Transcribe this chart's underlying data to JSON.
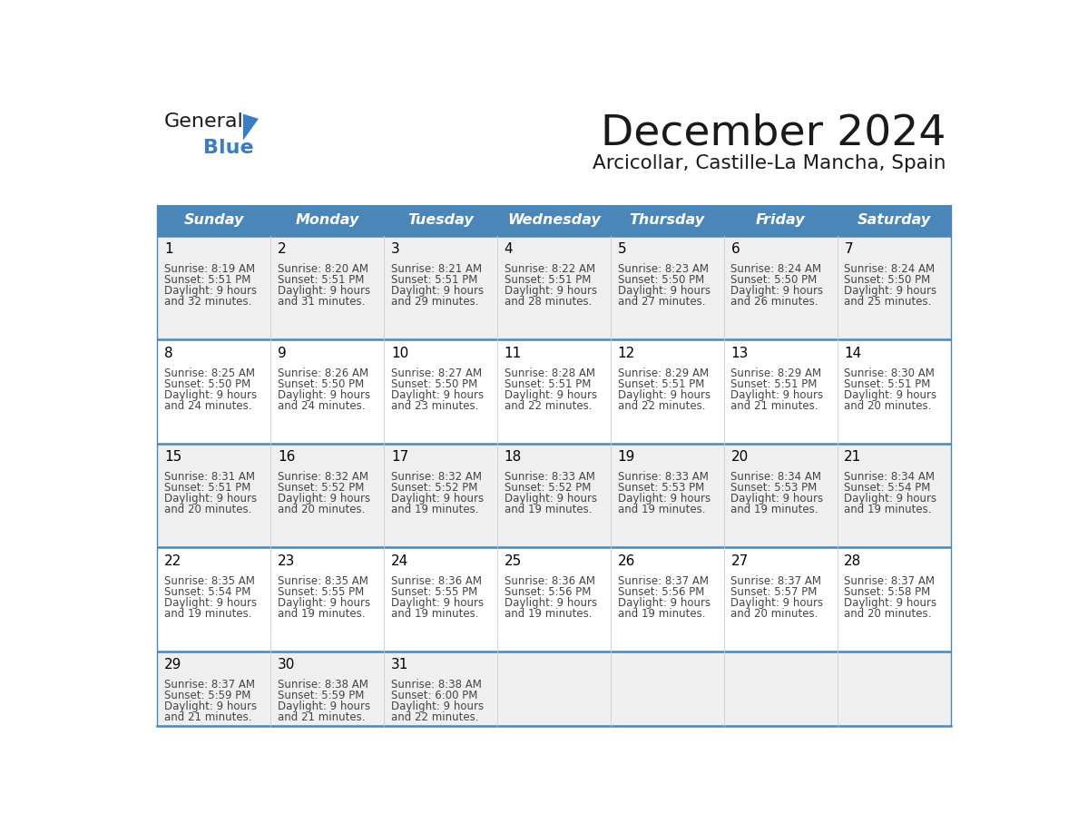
{
  "title": "December 2024",
  "subtitle": "Arcicollar, Castille-La Mancha, Spain",
  "header_color": "#4a86b8",
  "header_text_color": "#ffffff",
  "days_of_week": [
    "Sunday",
    "Monday",
    "Tuesday",
    "Wednesday",
    "Thursday",
    "Friday",
    "Saturday"
  ],
  "cell_bg_even": "#efefef",
  "cell_bg_odd": "#ffffff",
  "border_color": "#4a86b8",
  "day_num_color": "#000000",
  "text_color": "#444444",
  "calendar_data": [
    [
      {
        "day": 1,
        "sunrise": "8:19 AM",
        "sunset": "5:51 PM",
        "daylight_h": "9 hours",
        "daylight_m": "32 minutes"
      },
      {
        "day": 2,
        "sunrise": "8:20 AM",
        "sunset": "5:51 PM",
        "daylight_h": "9 hours",
        "daylight_m": "31 minutes"
      },
      {
        "day": 3,
        "sunrise": "8:21 AM",
        "sunset": "5:51 PM",
        "daylight_h": "9 hours",
        "daylight_m": "29 minutes"
      },
      {
        "day": 4,
        "sunrise": "8:22 AM",
        "sunset": "5:51 PM",
        "daylight_h": "9 hours",
        "daylight_m": "28 minutes"
      },
      {
        "day": 5,
        "sunrise": "8:23 AM",
        "sunset": "5:50 PM",
        "daylight_h": "9 hours",
        "daylight_m": "27 minutes"
      },
      {
        "day": 6,
        "sunrise": "8:24 AM",
        "sunset": "5:50 PM",
        "daylight_h": "9 hours",
        "daylight_m": "26 minutes"
      },
      {
        "day": 7,
        "sunrise": "8:24 AM",
        "sunset": "5:50 PM",
        "daylight_h": "9 hours",
        "daylight_m": "25 minutes"
      }
    ],
    [
      {
        "day": 8,
        "sunrise": "8:25 AM",
        "sunset": "5:50 PM",
        "daylight_h": "9 hours",
        "daylight_m": "24 minutes"
      },
      {
        "day": 9,
        "sunrise": "8:26 AM",
        "sunset": "5:50 PM",
        "daylight_h": "9 hours",
        "daylight_m": "24 minutes"
      },
      {
        "day": 10,
        "sunrise": "8:27 AM",
        "sunset": "5:50 PM",
        "daylight_h": "9 hours",
        "daylight_m": "23 minutes"
      },
      {
        "day": 11,
        "sunrise": "8:28 AM",
        "sunset": "5:51 PM",
        "daylight_h": "9 hours",
        "daylight_m": "22 minutes"
      },
      {
        "day": 12,
        "sunrise": "8:29 AM",
        "sunset": "5:51 PM",
        "daylight_h": "9 hours",
        "daylight_m": "22 minutes"
      },
      {
        "day": 13,
        "sunrise": "8:29 AM",
        "sunset": "5:51 PM",
        "daylight_h": "9 hours",
        "daylight_m": "21 minutes"
      },
      {
        "day": 14,
        "sunrise": "8:30 AM",
        "sunset": "5:51 PM",
        "daylight_h": "9 hours",
        "daylight_m": "20 minutes"
      }
    ],
    [
      {
        "day": 15,
        "sunrise": "8:31 AM",
        "sunset": "5:51 PM",
        "daylight_h": "9 hours",
        "daylight_m": "20 minutes"
      },
      {
        "day": 16,
        "sunrise": "8:32 AM",
        "sunset": "5:52 PM",
        "daylight_h": "9 hours",
        "daylight_m": "20 minutes"
      },
      {
        "day": 17,
        "sunrise": "8:32 AM",
        "sunset": "5:52 PM",
        "daylight_h": "9 hours",
        "daylight_m": "19 minutes"
      },
      {
        "day": 18,
        "sunrise": "8:33 AM",
        "sunset": "5:52 PM",
        "daylight_h": "9 hours",
        "daylight_m": "19 minutes"
      },
      {
        "day": 19,
        "sunrise": "8:33 AM",
        "sunset": "5:53 PM",
        "daylight_h": "9 hours",
        "daylight_m": "19 minutes"
      },
      {
        "day": 20,
        "sunrise": "8:34 AM",
        "sunset": "5:53 PM",
        "daylight_h": "9 hours",
        "daylight_m": "19 minutes"
      },
      {
        "day": 21,
        "sunrise": "8:34 AM",
        "sunset": "5:54 PM",
        "daylight_h": "9 hours",
        "daylight_m": "19 minutes"
      }
    ],
    [
      {
        "day": 22,
        "sunrise": "8:35 AM",
        "sunset": "5:54 PM",
        "daylight_h": "9 hours",
        "daylight_m": "19 minutes"
      },
      {
        "day": 23,
        "sunrise": "8:35 AM",
        "sunset": "5:55 PM",
        "daylight_h": "9 hours",
        "daylight_m": "19 minutes"
      },
      {
        "day": 24,
        "sunrise": "8:36 AM",
        "sunset": "5:55 PM",
        "daylight_h": "9 hours",
        "daylight_m": "19 minutes"
      },
      {
        "day": 25,
        "sunrise": "8:36 AM",
        "sunset": "5:56 PM",
        "daylight_h": "9 hours",
        "daylight_m": "19 minutes"
      },
      {
        "day": 26,
        "sunrise": "8:37 AM",
        "sunset": "5:56 PM",
        "daylight_h": "9 hours",
        "daylight_m": "19 minutes"
      },
      {
        "day": 27,
        "sunrise": "8:37 AM",
        "sunset": "5:57 PM",
        "daylight_h": "9 hours",
        "daylight_m": "20 minutes"
      },
      {
        "day": 28,
        "sunrise": "8:37 AM",
        "sunset": "5:58 PM",
        "daylight_h": "9 hours",
        "daylight_m": "20 minutes"
      }
    ],
    [
      {
        "day": 29,
        "sunrise": "8:37 AM",
        "sunset": "5:59 PM",
        "daylight_h": "9 hours",
        "daylight_m": "21 minutes"
      },
      {
        "day": 30,
        "sunrise": "8:38 AM",
        "sunset": "5:59 PM",
        "daylight_h": "9 hours",
        "daylight_m": "21 minutes"
      },
      {
        "day": 31,
        "sunrise": "8:38 AM",
        "sunset": "6:00 PM",
        "daylight_h": "9 hours",
        "daylight_m": "22 minutes"
      },
      null,
      null,
      null,
      null
    ]
  ],
  "logo_text_general": "General",
  "logo_text_blue": "Blue",
  "logo_color_general": "#1a1a1a",
  "logo_color_blue": "#3a7ebf",
  "logo_triangle_color": "#3a7ebf",
  "figsize": [
    11.88,
    9.18
  ],
  "dpi": 100
}
